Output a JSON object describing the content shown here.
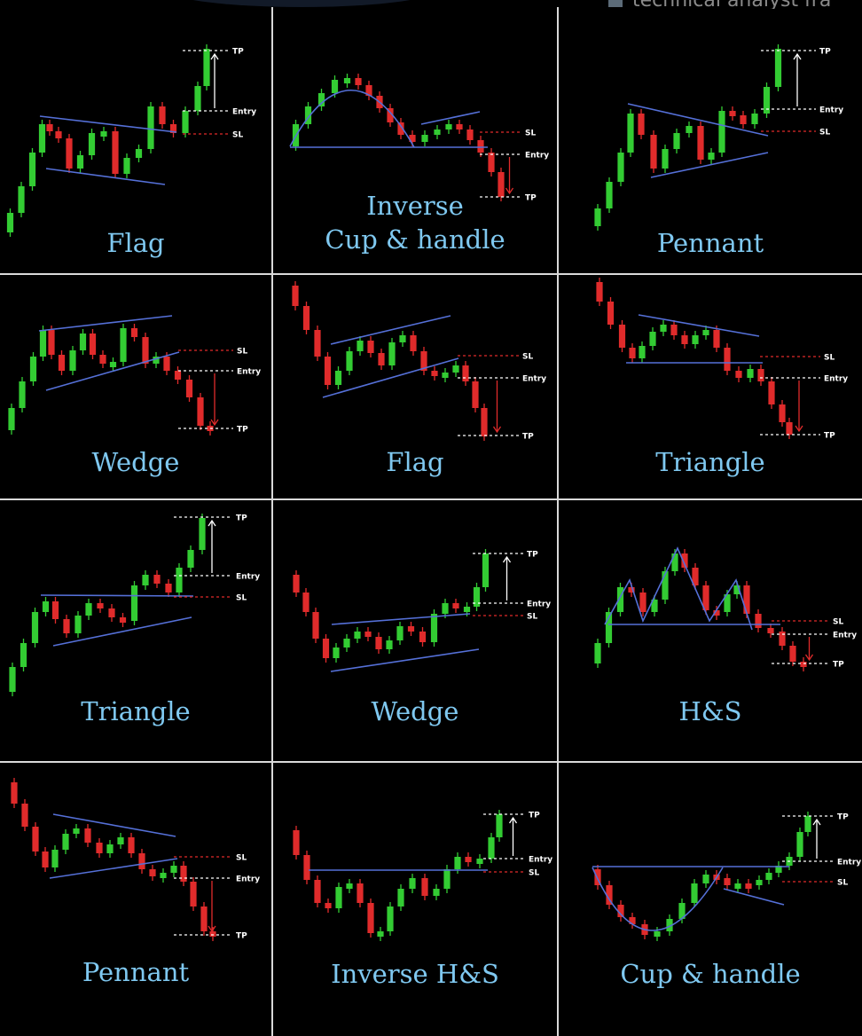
{
  "header_fragment": {
    "text": "technical analyst fra",
    "icon": "bookmark-icon"
  },
  "colors": {
    "bull": "#33cc33",
    "bear": "#e02b2b",
    "trend": "#5570d8",
    "label": "#7fc8f0",
    "divider": "#d9d9d9",
    "tag": "#ffffff"
  },
  "patterns": [
    {
      "id": "flag-bull",
      "label": "Flag",
      "direction": "bullish",
      "levels": [
        "TP",
        "Entry",
        "SL"
      ]
    },
    {
      "id": "inverse-cup-handle",
      "label_lines": [
        "Inverse",
        "Cup & handle"
      ],
      "direction": "bearish",
      "levels": [
        "SL",
        "Entry",
        "TP"
      ]
    },
    {
      "id": "pennant-bull",
      "label": "Pennant",
      "direction": "bullish",
      "levels": [
        "TP",
        "Entry",
        "SL"
      ]
    },
    {
      "id": "wedge-bear",
      "label": "Wedge",
      "direction": "bearish",
      "levels": [
        "SL",
        "Entry",
        "TP"
      ]
    },
    {
      "id": "flag-bear",
      "label": "Flag",
      "direction": "bearish",
      "levels": [
        "SL",
        "Entry",
        "TP"
      ]
    },
    {
      "id": "triangle-bear",
      "label": "Triangle",
      "direction": "bearish",
      "levels": [
        "SL",
        "Entry",
        "TP"
      ]
    },
    {
      "id": "triangle-bull",
      "label": "Triangle",
      "direction": "bullish",
      "levels": [
        "TP",
        "Entry",
        "SL"
      ]
    },
    {
      "id": "wedge-bull",
      "label": "Wedge",
      "direction": "bullish",
      "levels": [
        "TP",
        "Entry",
        "SL"
      ]
    },
    {
      "id": "head-shoulders",
      "label": "H&S",
      "direction": "bearish",
      "levels": [
        "SL",
        "Entry",
        "TP"
      ]
    },
    {
      "id": "pennant-bear",
      "label": "Pennant",
      "direction": "bearish",
      "levels": [
        "SL",
        "Entry",
        "TP"
      ]
    },
    {
      "id": "inverse-head-shoulders",
      "label": "Inverse H&S",
      "direction": "bullish",
      "levels": [
        "TP",
        "Entry",
        "SL"
      ]
    },
    {
      "id": "cup-handle",
      "label": "Cup & handle",
      "direction": "bullish",
      "levels": [
        "TP",
        "Entry",
        "SL"
      ]
    }
  ]
}
